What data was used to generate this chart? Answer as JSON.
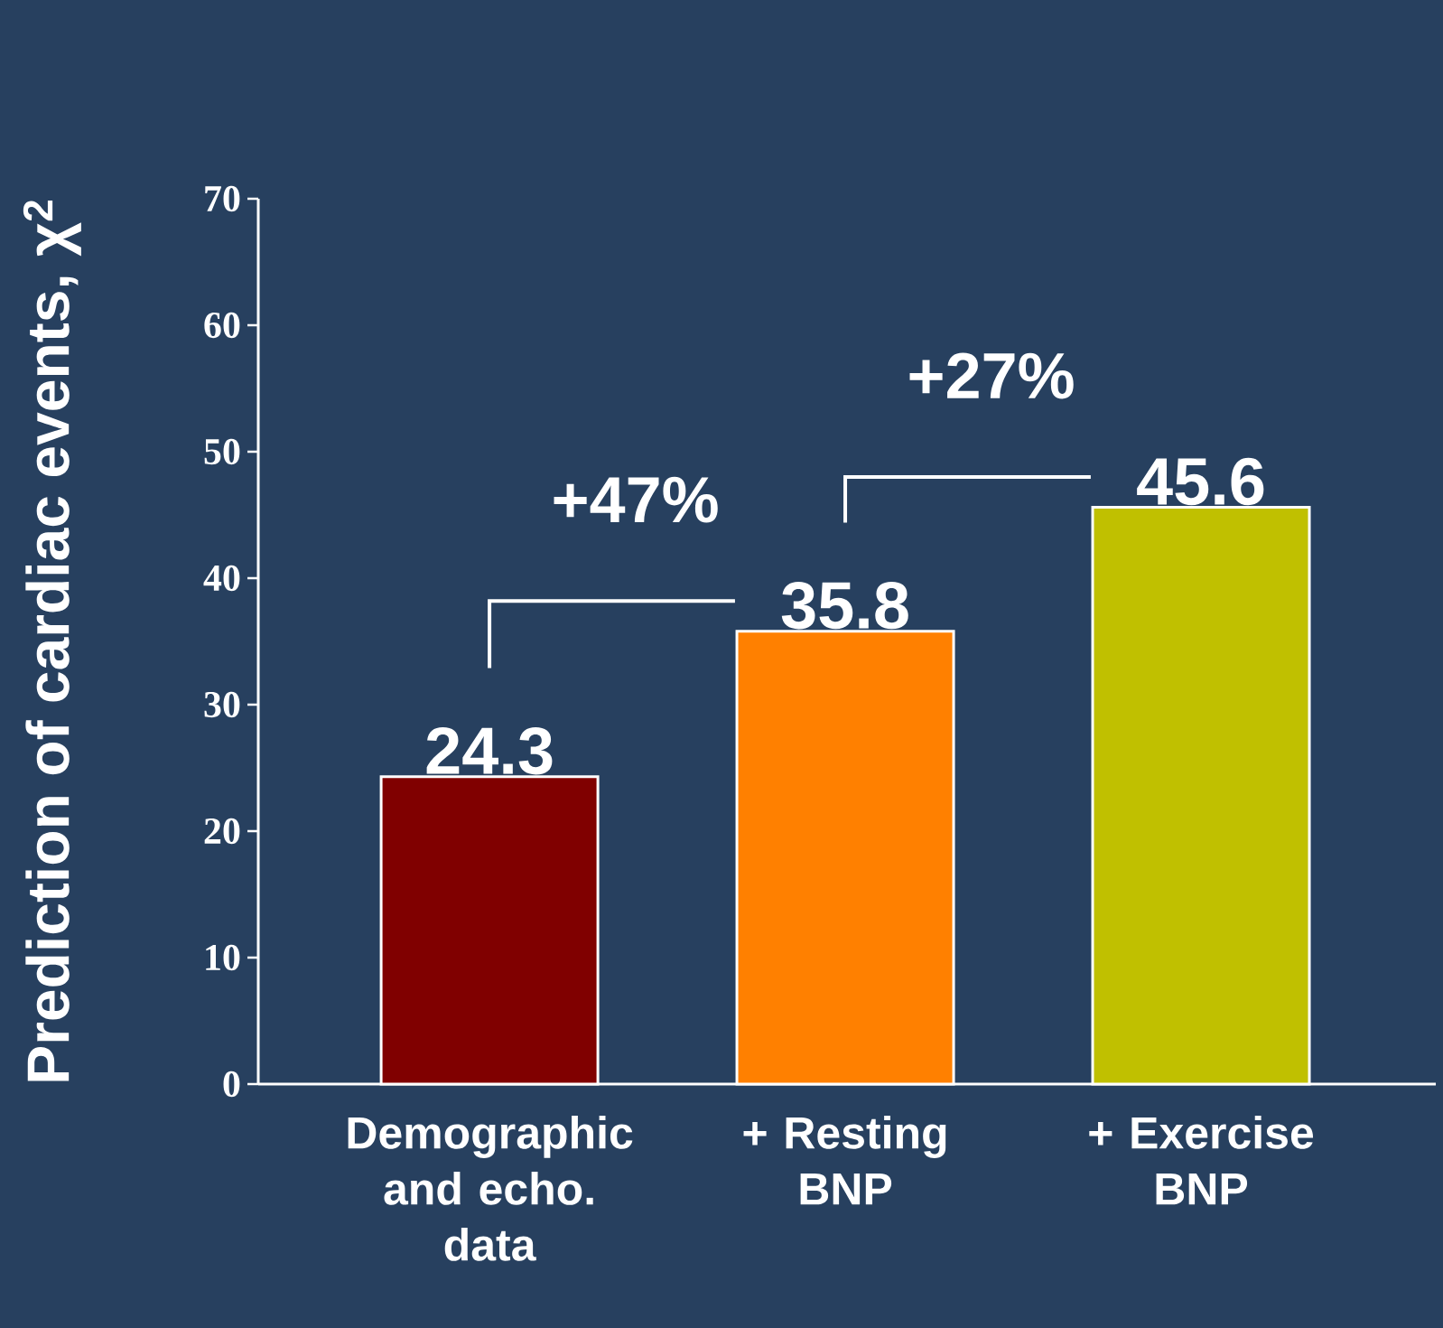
{
  "chart_data": {
    "type": "bar",
    "ylabel": "Prediction of cardiac events, χ$^{2}$",
    "categories": [
      "Demographic and echo. data",
      "+ Resting BNP",
      "+ Exercise BNP"
    ],
    "values": [
      24.3,
      35.8,
      45.6
    ],
    "colors": [
      "#800000",
      "#ff8000",
      "#c0c000"
    ],
    "ylim": [
      0,
      70
    ],
    "yticks": [
      0,
      10,
      20,
      30,
      40,
      50,
      60,
      70
    ],
    "data_labels": true,
    "annotations": [
      "+47%",
      "+27%"
    ]
  }
}
